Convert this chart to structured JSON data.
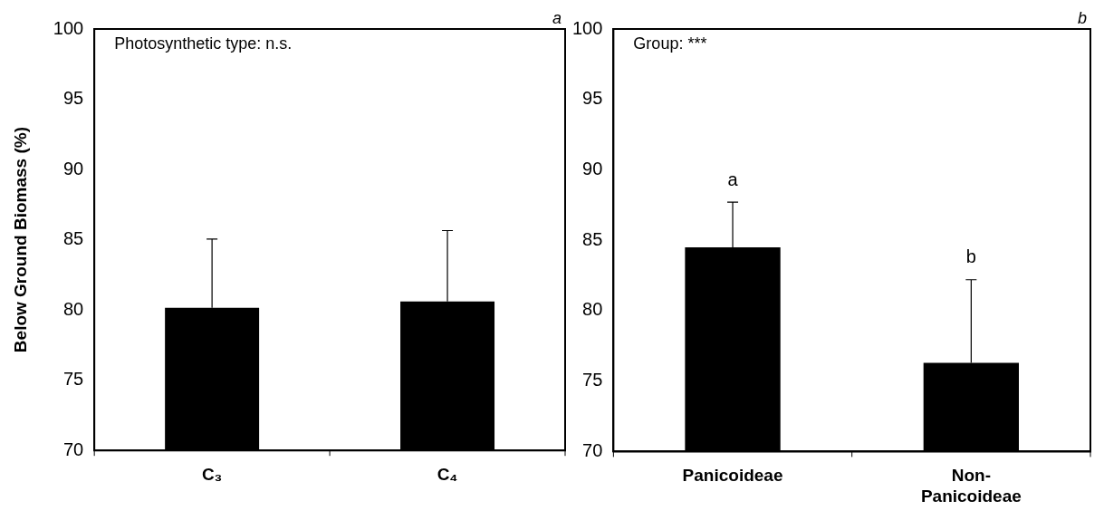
{
  "chart_data": [
    {
      "type": "bar",
      "ylabel": "Below Ground Biomass (%)",
      "categories": [
        "C₃",
        "C₄"
      ],
      "values": [
        80.15,
        80.6
      ],
      "color": "#000000",
      "errors": [
        [
          80.15,
          85.05
        ],
        [
          80.6,
          85.65
        ]
      ],
      "ylim": [
        70,
        100
      ],
      "yticks": [
        70,
        75,
        80,
        85,
        90,
        95,
        100
      ],
      "grid": false,
      "annotations": [
        "Photosynthetic type: n.s.",
        "a"
      ]
    },
    {
      "type": "bar",
      "categories": [
        "Panicoideae",
        "Non-Panicoideae"
      ],
      "values": [
        84.5,
        76.3
      ],
      "color": "#000000",
      "errors": [
        [
          84.5,
          87.7
        ],
        [
          76.3,
          82.2
        ]
      ],
      "ylim": [
        70,
        100
      ],
      "yticks": [
        70,
        75,
        80,
        85,
        90,
        95,
        100
      ],
      "grid": false,
      "annotations": [
        "Group: ***",
        "b",
        "a",
        "b"
      ]
    }
  ]
}
